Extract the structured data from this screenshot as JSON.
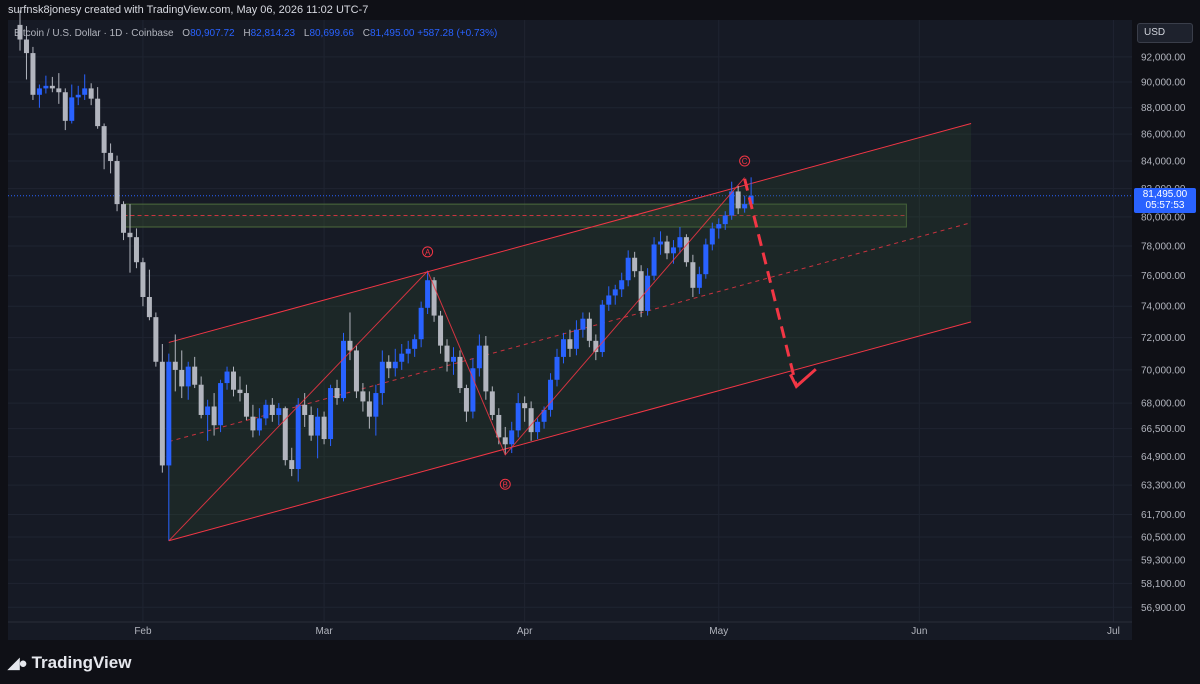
{
  "watermark": "surfnsk8jonesy created with TradingView.com, May 06, 2026 11:02 UTC-7",
  "brand": "TradingView",
  "brand_icon": "tradingview-logo-icon",
  "currency": "USD",
  "legend": {
    "symbol": "Bitcoin / U.S. Dollar · 1D · Coinbase",
    "o_label": "O",
    "o": "80,907.72",
    "h_label": "H",
    "h": "82,814.23",
    "l_label": "L",
    "l": "80,699.66",
    "c_label": "C",
    "c": "81,495.00",
    "change": "+587.28 (+0.73%)"
  },
  "last_price": {
    "value": "81,495.00",
    "countdown": "05:57:53"
  },
  "colors": {
    "up": "#2962ff",
    "down": "#b2b5be",
    "channel": "#f23645",
    "zone": "#2f4a2f",
    "background": "#161a25"
  },
  "chart_data": {
    "type": "candlestick",
    "x_labels": [
      "Feb",
      "Mar",
      "Apr",
      "May",
      "Jun",
      "Jul"
    ],
    "y_tick_labels": [
      "92,000.00",
      "90,000.00",
      "88,000.00",
      "86,000.00",
      "84,000.00",
      "82,000.00",
      "80,000.00",
      "78,000.00",
      "76,000.00",
      "74,000.00",
      "72,000.00",
      "70,000.00",
      "68,000.00",
      "66,500.00",
      "64,900.00",
      "63,300.00",
      "61,700.00",
      "60,500.00",
      "59,300.00",
      "58,100.00",
      "56,900.00"
    ],
    "y_scale": "log",
    "grid": true,
    "series": [
      {
        "date": "2026-01-13",
        "open": 94600,
        "high": 95800,
        "low": 92500,
        "close": 93400
      },
      {
        "date": "2026-01-14",
        "open": 93400,
        "high": 94500,
        "low": 90200,
        "close": 92300
      },
      {
        "date": "2026-01-15",
        "open": 92300,
        "high": 92800,
        "low": 88600,
        "close": 89000
      },
      {
        "date": "2026-01-16",
        "open": 89000,
        "high": 89800,
        "low": 88000,
        "close": 89500
      },
      {
        "date": "2026-01-17",
        "open": 89500,
        "high": 90500,
        "low": 89100,
        "close": 89700
      },
      {
        "date": "2026-01-18",
        "open": 89700,
        "high": 90400,
        "low": 89200,
        "close": 89500
      },
      {
        "date": "2026-01-19",
        "open": 89500,
        "high": 90700,
        "low": 88300,
        "close": 89200
      },
      {
        "date": "2026-01-20",
        "open": 89200,
        "high": 89500,
        "low": 86300,
        "close": 87000
      },
      {
        "date": "2026-01-21",
        "open": 87000,
        "high": 89800,
        "low": 86800,
        "close": 88800
      },
      {
        "date": "2026-01-22",
        "open": 88800,
        "high": 89700,
        "low": 88200,
        "close": 89000
      },
      {
        "date": "2026-01-23",
        "open": 89000,
        "high": 90600,
        "low": 88600,
        "close": 89500
      },
      {
        "date": "2026-01-24",
        "open": 89500,
        "high": 89900,
        "low": 88200,
        "close": 88700
      },
      {
        "date": "2026-01-25",
        "open": 88700,
        "high": 89600,
        "low": 86400,
        "close": 86600
      },
      {
        "date": "2026-01-26",
        "open": 86600,
        "high": 86800,
        "low": 83400,
        "close": 84600
      },
      {
        "date": "2026-01-27",
        "open": 84600,
        "high": 85300,
        "low": 83100,
        "close": 84000
      },
      {
        "date": "2026-01-28",
        "open": 84000,
        "high": 84400,
        "low": 80400,
        "close": 80900
      },
      {
        "date": "2026-01-29",
        "open": 80900,
        "high": 81100,
        "low": 78400,
        "close": 78900
      },
      {
        "date": "2026-01-30",
        "open": 78900,
        "high": 80900,
        "low": 76200,
        "close": 78600
      },
      {
        "date": "2026-01-31",
        "open": 78600,
        "high": 79200,
        "low": 76500,
        "close": 76900
      },
      {
        "date": "2026-02-01",
        "open": 76900,
        "high": 77200,
        "low": 74000,
        "close": 74600
      },
      {
        "date": "2026-02-02",
        "open": 74600,
        "high": 76400,
        "low": 73100,
        "close": 73300
      },
      {
        "date": "2026-02-03",
        "open": 73300,
        "high": 73600,
        "low": 70200,
        "close": 70500
      },
      {
        "date": "2026-02-04",
        "open": 70500,
        "high": 71600,
        "low": 64000,
        "close": 64400
      },
      {
        "date": "2026-02-05",
        "open": 64400,
        "high": 71000,
        "low": 60300,
        "close": 70500
      },
      {
        "date": "2026-02-06",
        "open": 70500,
        "high": 72200,
        "low": 68700,
        "close": 70000
      },
      {
        "date": "2026-02-07",
        "open": 70000,
        "high": 71200,
        "low": 68300,
        "close": 69000
      },
      {
        "date": "2026-02-08",
        "open": 69000,
        "high": 70500,
        "low": 68200,
        "close": 70200
      },
      {
        "date": "2026-02-09",
        "open": 70200,
        "high": 70800,
        "low": 68900,
        "close": 69100
      },
      {
        "date": "2026-02-10",
        "open": 69100,
        "high": 69600,
        "low": 67100,
        "close": 67300
      },
      {
        "date": "2026-02-11",
        "open": 67300,
        "high": 68200,
        "low": 65800,
        "close": 67800
      },
      {
        "date": "2026-02-12",
        "open": 67800,
        "high": 68600,
        "low": 66100,
        "close": 66700
      },
      {
        "date": "2026-02-13",
        "open": 66700,
        "high": 69400,
        "low": 66300,
        "close": 69200
      },
      {
        "date": "2026-02-14",
        "open": 69200,
        "high": 70200,
        "low": 68800,
        "close": 69900
      },
      {
        "date": "2026-02-15",
        "open": 69900,
        "high": 70200,
        "low": 68400,
        "close": 68800
      },
      {
        "date": "2026-02-16",
        "open": 68800,
        "high": 69600,
        "low": 68100,
        "close": 68600
      },
      {
        "date": "2026-02-17",
        "open": 68600,
        "high": 69100,
        "low": 67000,
        "close": 67200
      },
      {
        "date": "2026-02-18",
        "open": 67200,
        "high": 67900,
        "low": 66000,
        "close": 66400
      },
      {
        "date": "2026-02-19",
        "open": 66400,
        "high": 67700,
        "low": 66100,
        "close": 67100
      },
      {
        "date": "2026-02-20",
        "open": 67100,
        "high": 68200,
        "low": 66700,
        "close": 67900
      },
      {
        "date": "2026-02-21",
        "open": 67900,
        "high": 68300,
        "low": 66900,
        "close": 67300
      },
      {
        "date": "2026-02-22",
        "open": 67300,
        "high": 68000,
        "low": 66700,
        "close": 67700
      },
      {
        "date": "2026-02-23",
        "open": 67700,
        "high": 67800,
        "low": 64400,
        "close": 64700
      },
      {
        "date": "2026-02-24",
        "open": 64700,
        "high": 65400,
        "low": 63800,
        "close": 64200
      },
      {
        "date": "2026-02-25",
        "open": 64200,
        "high": 68300,
        "low": 63500,
        "close": 67900
      },
      {
        "date": "2026-02-26",
        "open": 67900,
        "high": 68600,
        "low": 66600,
        "close": 67300
      },
      {
        "date": "2026-02-27",
        "open": 67300,
        "high": 67800,
        "low": 65800,
        "close": 66100
      },
      {
        "date": "2026-02-28",
        "open": 66100,
        "high": 67700,
        "low": 64800,
        "close": 67200
      },
      {
        "date": "2026-03-01",
        "open": 67200,
        "high": 67500,
        "low": 65600,
        "close": 65900
      },
      {
        "date": "2026-03-02",
        "open": 65900,
        "high": 69100,
        "low": 65500,
        "close": 68900
      },
      {
        "date": "2026-03-03",
        "open": 68900,
        "high": 69400,
        "low": 67900,
        "close": 68300
      },
      {
        "date": "2026-03-04",
        "open": 68300,
        "high": 72300,
        "low": 68100,
        "close": 71800
      },
      {
        "date": "2026-03-05",
        "open": 71800,
        "high": 73600,
        "low": 70600,
        "close": 71200
      },
      {
        "date": "2026-03-06",
        "open": 71200,
        "high": 71500,
        "low": 68300,
        "close": 68700
      },
      {
        "date": "2026-03-07",
        "open": 68700,
        "high": 69200,
        "low": 67500,
        "close": 68100
      },
      {
        "date": "2026-03-08",
        "open": 68100,
        "high": 68700,
        "low": 66500,
        "close": 67200
      },
      {
        "date": "2026-03-09",
        "open": 67200,
        "high": 69100,
        "low": 66100,
        "close": 68600
      },
      {
        "date": "2026-03-10",
        "open": 68600,
        "high": 71200,
        "low": 67900,
        "close": 70500
      },
      {
        "date": "2026-03-11",
        "open": 70500,
        "high": 70900,
        "low": 69500,
        "close": 70100
      },
      {
        "date": "2026-03-12",
        "open": 70100,
        "high": 71300,
        "low": 69600,
        "close": 70500
      },
      {
        "date": "2026-03-13",
        "open": 70500,
        "high": 71600,
        "low": 70000,
        "close": 71000
      },
      {
        "date": "2026-03-14",
        "open": 71000,
        "high": 71800,
        "low": 70400,
        "close": 71300
      },
      {
        "date": "2026-03-15",
        "open": 71300,
        "high": 72200,
        "low": 70800,
        "close": 71900
      },
      {
        "date": "2026-03-16",
        "open": 71900,
        "high": 74300,
        "low": 71400,
        "close": 73900
      },
      {
        "date": "2026-03-17",
        "open": 73900,
        "high": 76300,
        "low": 73500,
        "close": 75700
      },
      {
        "date": "2026-03-18",
        "open": 75700,
        "high": 75900,
        "low": 73000,
        "close": 73400
      },
      {
        "date": "2026-03-19",
        "open": 73400,
        "high": 73700,
        "low": 71000,
        "close": 71500
      },
      {
        "date": "2026-03-20",
        "open": 71500,
        "high": 71900,
        "low": 69900,
        "close": 70500
      },
      {
        "date": "2026-03-21",
        "open": 70500,
        "high": 71400,
        "low": 69700,
        "close": 70800
      },
      {
        "date": "2026-03-22",
        "open": 70800,
        "high": 71200,
        "low": 68600,
        "close": 68900
      },
      {
        "date": "2026-03-23",
        "open": 68900,
        "high": 69100,
        "low": 66900,
        "close": 67500
      },
      {
        "date": "2026-03-24",
        "open": 67500,
        "high": 70700,
        "low": 67100,
        "close": 70100
      },
      {
        "date": "2026-03-25",
        "open": 70100,
        "high": 72200,
        "low": 69600,
        "close": 71500
      },
      {
        "date": "2026-03-26",
        "open": 71500,
        "high": 72100,
        "low": 68200,
        "close": 68700
      },
      {
        "date": "2026-03-27",
        "open": 68700,
        "high": 69000,
        "low": 67000,
        "close": 67300
      },
      {
        "date": "2026-03-28",
        "open": 67300,
        "high": 67700,
        "low": 65600,
        "close": 66000
      },
      {
        "date": "2026-03-29",
        "open": 66000,
        "high": 66600,
        "low": 65000,
        "close": 65600
      },
      {
        "date": "2026-03-30",
        "open": 65600,
        "high": 66900,
        "low": 65100,
        "close": 66400
      },
      {
        "date": "2026-03-31",
        "open": 66400,
        "high": 68600,
        "low": 66000,
        "close": 68000
      },
      {
        "date": "2026-04-01",
        "open": 68000,
        "high": 68400,
        "low": 66900,
        "close": 67700
      },
      {
        "date": "2026-04-02",
        "open": 67700,
        "high": 68100,
        "low": 65800,
        "close": 66300
      },
      {
        "date": "2026-04-03",
        "open": 66300,
        "high": 67100,
        "low": 65900,
        "close": 66900
      },
      {
        "date": "2026-04-04",
        "open": 66900,
        "high": 67800,
        "low": 66500,
        "close": 67600
      },
      {
        "date": "2026-04-05",
        "open": 67600,
        "high": 69800,
        "low": 67200,
        "close": 69400
      },
      {
        "date": "2026-04-06",
        "open": 69400,
        "high": 71300,
        "low": 69000,
        "close": 70800
      },
      {
        "date": "2026-04-07",
        "open": 70800,
        "high": 72300,
        "low": 70400,
        "close": 71900
      },
      {
        "date": "2026-04-08",
        "open": 71900,
        "high": 72500,
        "low": 70800,
        "close": 71300
      },
      {
        "date": "2026-04-09",
        "open": 71300,
        "high": 73100,
        "low": 70900,
        "close": 72500
      },
      {
        "date": "2026-04-10",
        "open": 72500,
        "high": 73600,
        "low": 72000,
        "close": 73200
      },
      {
        "date": "2026-04-11",
        "open": 73200,
        "high": 73600,
        "low": 71400,
        "close": 71800
      },
      {
        "date": "2026-04-12",
        "open": 71800,
        "high": 72200,
        "low": 70600,
        "close": 71100
      },
      {
        "date": "2026-04-13",
        "open": 71100,
        "high": 74400,
        "low": 70800,
        "close": 74100
      },
      {
        "date": "2026-04-14",
        "open": 74100,
        "high": 75300,
        "low": 73700,
        "close": 74700
      },
      {
        "date": "2026-04-15",
        "open": 74700,
        "high": 75400,
        "low": 74100,
        "close": 75100
      },
      {
        "date": "2026-04-16",
        "open": 75100,
        "high": 76200,
        "low": 74600,
        "close": 75700
      },
      {
        "date": "2026-04-17",
        "open": 75700,
        "high": 77700,
        "low": 75300,
        "close": 77200
      },
      {
        "date": "2026-04-18",
        "open": 77200,
        "high": 77600,
        "low": 75900,
        "close": 76300
      },
      {
        "date": "2026-04-19",
        "open": 76300,
        "high": 76700,
        "low": 73300,
        "close": 73700
      },
      {
        "date": "2026-04-20",
        "open": 73700,
        "high": 76500,
        "low": 73400,
        "close": 76000
      },
      {
        "date": "2026-04-21",
        "open": 76000,
        "high": 78600,
        "low": 75700,
        "close": 78100
      },
      {
        "date": "2026-04-22",
        "open": 78100,
        "high": 79000,
        "low": 77400,
        "close": 78300
      },
      {
        "date": "2026-04-23",
        "open": 78300,
        "high": 78700,
        "low": 77100,
        "close": 77500
      },
      {
        "date": "2026-04-24",
        "open": 77500,
        "high": 78400,
        "low": 76800,
        "close": 77900
      },
      {
        "date": "2026-04-25",
        "open": 77900,
        "high": 79300,
        "low": 77500,
        "close": 78600
      },
      {
        "date": "2026-04-26",
        "open": 78600,
        "high": 78800,
        "low": 76600,
        "close": 76900
      },
      {
        "date": "2026-04-27",
        "open": 76900,
        "high": 77400,
        "low": 74600,
        "close": 75200
      },
      {
        "date": "2026-04-28",
        "open": 75200,
        "high": 76600,
        "low": 74800,
        "close": 76100
      },
      {
        "date": "2026-04-29",
        "open": 76100,
        "high": 78500,
        "low": 75800,
        "close": 78100
      },
      {
        "date": "2026-04-30",
        "open": 78100,
        "high": 79600,
        "low": 77700,
        "close": 79200
      },
      {
        "date": "2026-05-01",
        "open": 79200,
        "high": 79900,
        "low": 78500,
        "close": 79500
      },
      {
        "date": "2026-05-02",
        "open": 79500,
        "high": 80400,
        "low": 79100,
        "close": 80100
      },
      {
        "date": "2026-05-03",
        "open": 80100,
        "high": 82500,
        "low": 79800,
        "close": 81800
      },
      {
        "date": "2026-05-04",
        "open": 81800,
        "high": 82200,
        "low": 80200,
        "close": 80600
      },
      {
        "date": "2026-05-05",
        "open": 80600,
        "high": 81500,
        "low": 80300,
        "close": 80900
      },
      {
        "date": "2026-05-06",
        "open": 80907.72,
        "high": 82814.23,
        "low": 80699.66,
        "close": 81495.0
      }
    ],
    "annotations": {
      "wave_labels": [
        {
          "text": "A",
          "date": "2026-03-17",
          "price": 77600
        },
        {
          "text": "B",
          "date": "2026-03-29",
          "price": 63350
        },
        {
          "text": "C",
          "date": "2026-05-05",
          "price": 84000
        }
      ],
      "wave_path": [
        {
          "date": "2026-02-05",
          "price": 60300
        },
        {
          "date": "2026-03-17",
          "price": 76300
        },
        {
          "date": "2026-03-29",
          "price": 65000
        },
        {
          "date": "2026-05-05",
          "price": 82800
        }
      ],
      "channel": {
        "upper": [
          {
            "date": "2026-02-05",
            "price": 71700
          },
          {
            "date": "2026-06-09",
            "price": 86800
          }
        ],
        "lower": [
          {
            "date": "2026-02-05",
            "price": 60300
          },
          {
            "date": "2026-06-09",
            "price": 73000
          }
        ]
      },
      "resistance_zone": {
        "from": "2026-01-29",
        "to": "2026-05-30",
        "top": 80900,
        "bottom": 79300
      },
      "projection": [
        {
          "date": "2026-05-05",
          "price": 82700
        },
        {
          "date": "2026-05-13",
          "price": 69000
        },
        {
          "date": "2026-05-16",
          "price": 69800
        }
      ]
    }
  }
}
